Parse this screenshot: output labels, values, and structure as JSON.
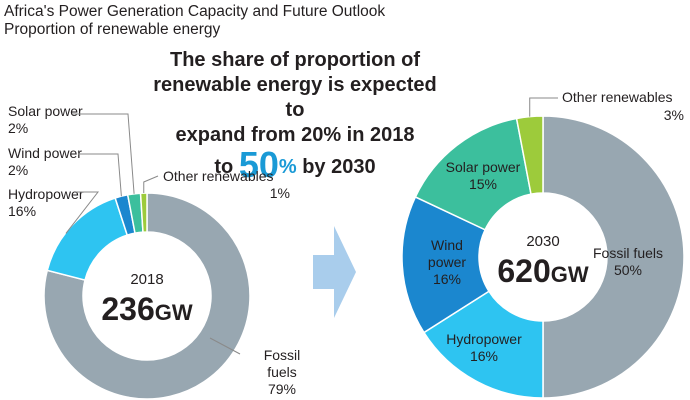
{
  "title": {
    "line1": "Africa's Power Generation Capacity and Future Outlook",
    "line2": "Proportion of renewable energy"
  },
  "headline": {
    "line1": "The share of proportion of",
    "line2": "renewable energy is expected to",
    "line3": "expand from 20% in 2018",
    "line4_pre": "to ",
    "line4_num": "50",
    "line4_pct": "%",
    "line4_post": " by 2030"
  },
  "colors": {
    "fossil": "#98a7b1",
    "hydro": "#2ec4f1",
    "wind": "#1b87cf",
    "solar": "#3cbf9d",
    "other": "#9dcb3b",
    "arrow": "#a9cdec",
    "accent": "#1a9ad6"
  },
  "chart_data": [
    {
      "type": "pie",
      "year": "2018",
      "total": "236",
      "unit": "GW",
      "slices": [
        {
          "key": "fossil",
          "name": "Fossil fuels",
          "label_lines": [
            "Fossil",
            "fuels"
          ],
          "value": 79,
          "display": "79%"
        },
        {
          "key": "hydro",
          "name": "Hydropower",
          "label_lines": [
            "Hydropower"
          ],
          "value": 16,
          "display": "16%"
        },
        {
          "key": "wind",
          "name": "Wind power",
          "label_lines": [
            "Wind power"
          ],
          "value": 2,
          "display": "2%"
        },
        {
          "key": "solar",
          "name": "Solar power",
          "label_lines": [
            "Solar power"
          ],
          "value": 2,
          "display": "2%"
        },
        {
          "key": "other",
          "name": "Other renewables",
          "label_lines": [
            "Other renewables"
          ],
          "value": 1,
          "display": "1%"
        }
      ]
    },
    {
      "type": "pie",
      "year": "2030",
      "total": "620",
      "unit": "GW",
      "slices": [
        {
          "key": "fossil",
          "name": "Fossil fuels",
          "label_lines": [
            "Fossil fuels"
          ],
          "value": 50,
          "display": "50%"
        },
        {
          "key": "hydro",
          "name": "Hydropower",
          "label_lines": [
            "Hydropower"
          ],
          "value": 16,
          "display": "16%"
        },
        {
          "key": "wind",
          "name": "Wind power",
          "label_lines": [
            "Wind",
            "power"
          ],
          "value": 16,
          "display": "16%"
        },
        {
          "key": "solar",
          "name": "Solar power",
          "label_lines": [
            "Solar power"
          ],
          "value": 15,
          "display": "15%"
        },
        {
          "key": "other",
          "name": "Other renewables",
          "label_lines": [
            "Other renewables"
          ],
          "value": 3,
          "display": "3%"
        }
      ]
    }
  ]
}
